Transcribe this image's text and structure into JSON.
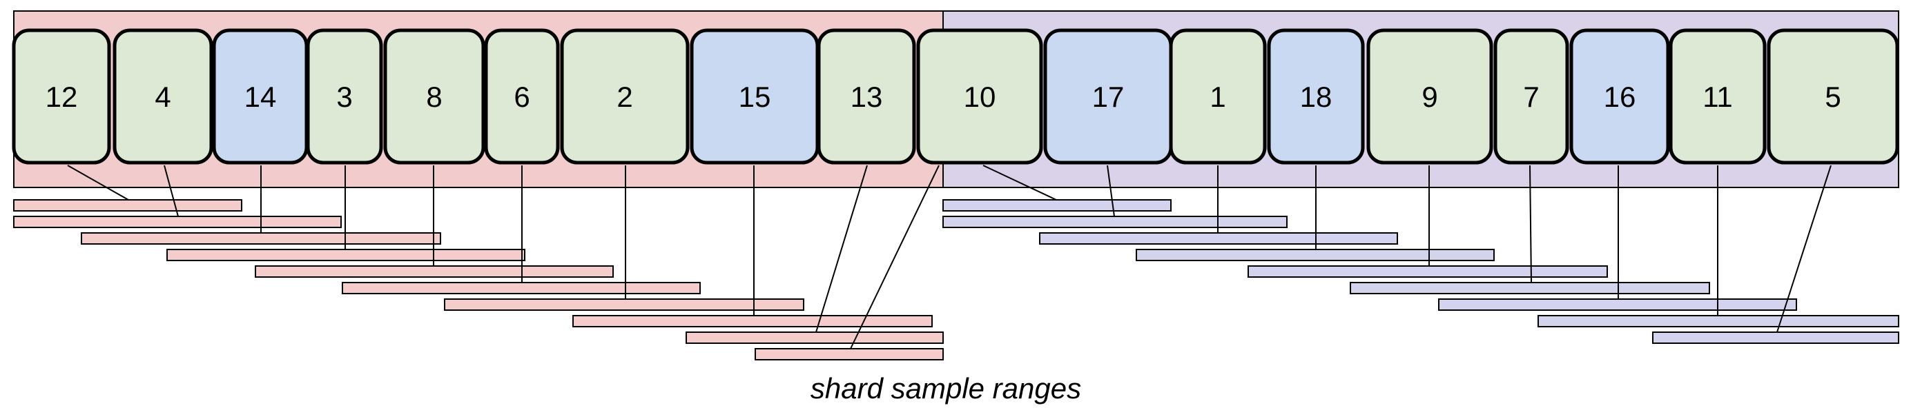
{
  "colors": {
    "group_a_bg": "#f2cccc",
    "group_b_bg": "#d9d2e9",
    "green_shard": "#dde9d4",
    "blue_shard": "#c9d9f2",
    "range_a": "#f4cccc",
    "range_b": "#d3d3ee",
    "stroke": "#000000"
  },
  "shards": [
    {
      "label": "12",
      "color": "green_shard"
    },
    {
      "label": "4",
      "color": "green_shard"
    },
    {
      "label": "14",
      "color": "blue_shard"
    },
    {
      "label": "3",
      "color": "green_shard"
    },
    {
      "label": "8",
      "color": "green_shard"
    },
    {
      "label": "6",
      "color": "green_shard"
    },
    {
      "label": "2",
      "color": "green_shard"
    },
    {
      "label": "15",
      "color": "blue_shard"
    },
    {
      "label": "13",
      "color": "green_shard"
    },
    {
      "label": "10",
      "color": "green_shard"
    },
    {
      "label": "17",
      "color": "blue_shard"
    },
    {
      "label": "1",
      "color": "green_shard"
    },
    {
      "label": "18",
      "color": "blue_shard"
    },
    {
      "label": "9",
      "color": "green_shard"
    },
    {
      "label": "7",
      "color": "green_shard"
    },
    {
      "label": "16",
      "color": "blue_shard"
    },
    {
      "label": "11",
      "color": "green_shard"
    },
    {
      "label": "5",
      "color": "green_shard"
    }
  ],
  "caption": "shard sample ranges"
}
